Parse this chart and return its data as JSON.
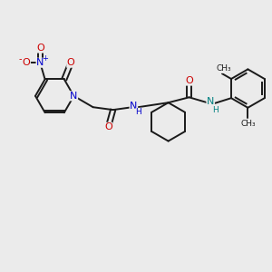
{
  "bg_color": "#ebebeb",
  "bond_color": "#1a1a1a",
  "nitrogen_color": "#0000cc",
  "oxygen_color": "#cc0000",
  "nh_color": "#008080",
  "figsize": [
    3.0,
    3.0
  ],
  "dpi": 100,
  "xlim": [
    0,
    10
  ],
  "ylim": [
    0,
    10
  ]
}
